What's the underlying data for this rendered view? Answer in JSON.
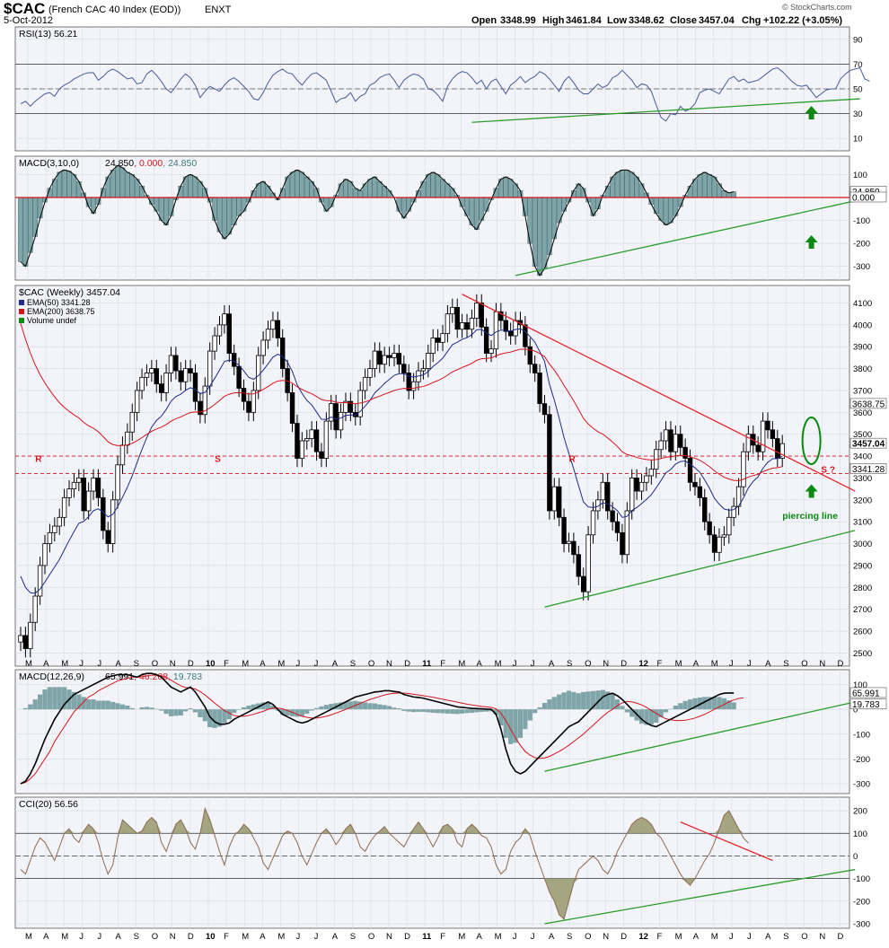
{
  "header": {
    "symbol": "$CAC",
    "name": "(French CAC 40 Index (EOD))",
    "exchange": "ENXT",
    "date": "5-Oct-2012",
    "open_label": "Open",
    "open": "3348.99",
    "high_label": "High",
    "high": "3461.84",
    "low_label": "Low",
    "low": "3348.62",
    "close_label": "Close",
    "close": "3457.04",
    "chg_label": "Chg",
    "chg": "+102.22 (+3.05%)",
    "watermark": "© StockCharts.com"
  },
  "colors": {
    "panel_bg": "#f3f4f9",
    "grid": "#d9dce6",
    "price_up": "#000000",
    "price_down": "#000000",
    "ema50": "#1f2a8a",
    "ema200": "#d3151b",
    "histogram": "#7fa5a8",
    "signal": "#d3151b",
    "macd_line": "#000000",
    "trendline_green": "#2a9d2a",
    "trendline_red": "#e0292e",
    "cci_fill": "#8b8b5a",
    "rsi_line": "#4a5a9a",
    "annotation_green": "#0b8a12"
  },
  "chart_data": [
    {
      "panel": "rsi",
      "type": "line",
      "title": "RSI(13) 56.21",
      "ylim": [
        0,
        100
      ],
      "yticks": [
        10,
        30,
        50,
        70,
        90
      ],
      "reference_lines": [
        30,
        50,
        70
      ],
      "current_value_label": "56.21",
      "grid": true,
      "values": [
        38,
        40,
        36,
        40,
        43,
        46,
        47,
        44,
        50,
        53,
        55,
        58,
        60,
        62,
        63,
        63,
        57,
        60,
        64,
        66,
        64,
        61,
        58,
        59,
        54,
        55,
        62,
        65,
        61,
        56,
        50,
        47,
        52,
        58,
        62,
        59,
        53,
        43,
        48,
        52,
        50,
        48,
        53,
        57,
        59,
        56,
        52,
        48,
        42,
        41,
        47,
        55,
        61,
        64,
        66,
        63,
        62,
        57,
        53,
        58,
        62,
        63,
        60,
        57,
        48,
        39,
        42,
        43,
        47,
        40,
        44,
        46,
        53,
        55,
        59,
        61,
        62,
        57,
        51,
        57,
        60,
        62,
        61,
        58,
        50,
        49,
        45,
        40,
        52,
        58,
        62,
        64,
        63,
        59,
        54,
        57,
        50,
        56,
        58,
        52,
        46,
        53,
        56,
        60,
        55,
        58,
        60,
        64,
        62,
        58,
        53,
        48,
        56,
        60,
        55,
        49,
        46,
        46,
        50,
        54,
        51,
        53,
        59,
        61,
        65,
        61,
        57,
        51,
        54,
        53,
        48,
        37,
        27,
        24,
        30,
        29,
        36,
        32,
        34,
        38,
        47,
        49,
        50,
        48,
        46,
        52,
        58,
        60,
        56,
        58,
        55,
        56,
        57,
        60,
        63,
        66,
        67,
        64,
        60,
        56,
        53,
        52,
        53,
        48,
        43,
        46,
        49,
        50,
        50,
        58,
        62,
        65,
        66,
        67,
        58,
        56.21
      ],
      "trendlines": [
        {
          "color": "green",
          "from": [
            93,
            23
          ],
          "to": [
            173,
            42
          ]
        }
      ]
    },
    {
      "panel": "macd_short",
      "type": "line",
      "title": "MACD(3,10,0)",
      "title_values": [
        "24.850",
        "0.000",
        "24.850"
      ],
      "ylim": [
        -360,
        180
      ],
      "yticks": [
        -300,
        -200,
        -100,
        0,
        100
      ],
      "current_value_labels": [
        "24.850",
        "0.000"
      ],
      "grid": true,
      "values": [
        -280,
        -300,
        -240,
        -170,
        -90,
        -20,
        40,
        80,
        110,
        120,
        115,
        100,
        70,
        20,
        -40,
        -70,
        -30,
        40,
        90,
        120,
        140,
        130,
        110,
        100,
        80,
        50,
        10,
        -30,
        -60,
        -100,
        -120,
        -80,
        -10,
        50,
        90,
        100,
        90,
        70,
        40,
        -20,
        -100,
        -150,
        -180,
        -160,
        -120,
        -80,
        -60,
        -20,
        30,
        60,
        70,
        50,
        20,
        -10,
        40,
        90,
        110,
        120,
        110,
        90,
        70,
        40,
        -20,
        -60,
        -40,
        10,
        60,
        80,
        70,
        40,
        30,
        60,
        80,
        90,
        70,
        50,
        30,
        0,
        -60,
        -90,
        -60,
        -20,
        30,
        70,
        100,
        110,
        100,
        80,
        60,
        40,
        10,
        -40,
        -80,
        -120,
        -140,
        -100,
        -60,
        -10,
        40,
        80,
        90,
        80,
        60,
        30,
        -80,
        -200,
        -300,
        -340,
        -310,
        -250,
        -180,
        -110,
        -60,
        -20,
        30,
        60,
        40,
        -20,
        -80,
        -50,
        10,
        50,
        90,
        110,
        120,
        120,
        110,
        90,
        60,
        20,
        -30,
        -70,
        -100,
        -120,
        -110,
        -80,
        -40,
        10,
        50,
        80,
        100,
        110,
        100,
        90,
        60,
        30,
        20,
        24.85
      ],
      "trendlines": [
        {
          "color": "green",
          "from": [
            102,
            -340
          ],
          "to": [
            173,
            -10
          ]
        }
      ]
    },
    {
      "panel": "price",
      "type": "candlestick",
      "title": "$CAC (Weekly) 3457.04",
      "series": [
        {
          "name": "EMA(50) 3341.28",
          "color": "#1f2a8a"
        },
        {
          "name": "EMA(200) 3638.75",
          "color": "#d3151b"
        },
        {
          "name": "Volume undef",
          "color": "#0b8a12"
        }
      ],
      "ylim": [
        2440,
        4180
      ],
      "yticks": [
        2500,
        2600,
        2700,
        2800,
        2900,
        3000,
        3100,
        3200,
        3300,
        3400,
        3500,
        3600,
        3700,
        3800,
        3900,
        4000,
        4100
      ],
      "current_value_labels": [
        "3638.75",
        "3457.04",
        "3341.28"
      ],
      "grid": true,
      "close": [
        2580,
        2520,
        2640,
        2760,
        2900,
        3000,
        3050,
        3080,
        3120,
        3210,
        3250,
        3280,
        3300,
        3150,
        3240,
        3300,
        3210,
        3060,
        3000,
        3200,
        3360,
        3450,
        3510,
        3600,
        3700,
        3760,
        3780,
        3800,
        3730,
        3690,
        3780,
        3860,
        3790,
        3740,
        3800,
        3780,
        3650,
        3590,
        3720,
        3880,
        3950,
        4000,
        4050,
        3870,
        3810,
        3710,
        3650,
        3600,
        3700,
        3860,
        3930,
        3980,
        4020,
        3940,
        3800,
        3690,
        3550,
        3390,
        3470,
        3480,
        3520,
        3420,
        3390,
        3560,
        3640,
        3520,
        3600,
        3650,
        3600,
        3580,
        3700,
        3760,
        3800,
        3880,
        3820,
        3860,
        3850,
        3870,
        3820,
        3780,
        3700,
        3740,
        3790,
        3800,
        3870,
        3940,
        3920,
        3960,
        4050,
        4080,
        3980,
        4010,
        3980,
        4030,
        4100,
        3990,
        3870,
        3890,
        4060,
        4020,
        3970,
        3950,
        4020,
        4000,
        3900,
        3820,
        3780,
        3640,
        3590,
        3150,
        3260,
        3120,
        3000,
        3010,
        2950,
        2850,
        2780,
        3040,
        3150,
        3200,
        3280,
        3150,
        3100,
        3050,
        2950,
        3150,
        3300,
        3240,
        3280,
        3310,
        3340,
        3430,
        3470,
        3520,
        3420,
        3500,
        3440,
        3390,
        3280,
        3260,
        3210,
        3100,
        3040,
        2960,
        3030,
        3040,
        3120,
        3170,
        3260,
        3420,
        3500,
        3450,
        3420,
        3560,
        3520,
        3480,
        3390,
        3457.04
      ],
      "annotations": [
        {
          "text": "R",
          "x": 3,
          "y": 3390,
          "color": "#d3151b"
        },
        {
          "text": "S",
          "x": 40,
          "y": 3390,
          "color": "#d3151b"
        },
        {
          "text": "R",
          "x": 113,
          "y": 3390,
          "color": "#d3151b"
        },
        {
          "text": "S ?",
          "x": 165,
          "y": 3340,
          "color": "#d3151b"
        },
        {
          "text": "piercing line",
          "x": 157,
          "y": 3130,
          "color": "#0b8a12"
        }
      ],
      "horizontal_lines": [
        3400,
        3320
      ],
      "trendlines": [
        {
          "color": "red",
          "from": [
            91,
            4140
          ],
          "to": [
            172,
            3240
          ]
        },
        {
          "color": "green",
          "from": [
            108,
            2710
          ],
          "to": [
            172,
            3060
          ]
        }
      ]
    },
    {
      "panel": "macd_long",
      "type": "line",
      "title": "MACD(12,26,9)",
      "title_values": [
        "65.991",
        "46.208",
        "19.783"
      ],
      "ylim": [
        -340,
        160
      ],
      "yticks": [
        -300,
        -200,
        -100,
        0,
        100
      ],
      "current_value_labels": [
        "65.991",
        "19.783"
      ],
      "grid": true,
      "macd": [
        -300,
        -290,
        -260,
        -220,
        -170,
        -120,
        -80,
        -40,
        -10,
        20,
        40,
        60,
        70,
        80,
        90,
        100,
        110,
        120,
        130,
        135,
        140,
        140,
        140,
        135,
        130,
        140,
        145,
        145,
        140,
        130,
        110,
        90,
        80,
        70,
        80,
        90,
        70,
        40,
        10,
        -30,
        -50,
        -60,
        -60,
        -55,
        -40,
        -30,
        -20,
        -10,
        0,
        10,
        20,
        30,
        20,
        0,
        -20,
        -30,
        -40,
        -50,
        -55,
        -50,
        -40,
        -30,
        -20,
        -10,
        0,
        10,
        20,
        30,
        40,
        50,
        55,
        60,
        65,
        70,
        72,
        75,
        75,
        72,
        70,
        60,
        55,
        50,
        48,
        45,
        40,
        35,
        30,
        25,
        20,
        15,
        10,
        8,
        6,
        4,
        3,
        2,
        1,
        0,
        -20,
        -80,
        -160,
        -220,
        -250,
        -260,
        -250,
        -230,
        -210,
        -190,
        -170,
        -150,
        -130,
        -110,
        -90,
        -70,
        -60,
        -50,
        -30,
        -10,
        10,
        30,
        50,
        60,
        65,
        55,
        40,
        20,
        0,
        -20,
        -40,
        -55,
        -65,
        -70,
        -60,
        -50,
        -40,
        -30,
        -20,
        -10,
        0,
        10,
        20,
        30,
        40,
        50,
        60,
        65,
        66,
        65.991
      ],
      "signal": [
        -300,
        -295,
        -280,
        -260,
        -230,
        -200,
        -170,
        -130,
        -100,
        -70,
        -40,
        -10,
        10,
        30,
        50,
        60,
        75,
        85,
        95,
        105,
        115,
        120,
        125,
        130,
        130,
        132,
        135,
        138,
        138,
        135,
        128,
        118,
        106,
        95,
        88,
        86,
        82,
        72,
        58,
        42,
        25,
        10,
        -5,
        -15,
        -25,
        -28,
        -28,
        -25,
        -20,
        -14,
        -8,
        0,
        5,
        5,
        2,
        -5,
        -12,
        -20,
        -28,
        -32,
        -35,
        -35,
        -32,
        -28,
        -22,
        -15,
        -8,
        0,
        8,
        16,
        24,
        32,
        40,
        46,
        52,
        58,
        62,
        65,
        66,
        66,
        64,
        61,
        58,
        55,
        52,
        49,
        45,
        41,
        37,
        33,
        29,
        25,
        21,
        18,
        15,
        12,
        10,
        8,
        2,
        -15,
        -45,
        -80,
        -115,
        -145,
        -170,
        -185,
        -195,
        -198,
        -196,
        -190,
        -180,
        -170,
        -158,
        -145,
        -130,
        -115,
        -100,
        -82,
        -64,
        -46,
        -28,
        -12,
        0,
        15,
        26,
        32,
        30,
        25,
        18,
        8,
        -4,
        -16,
        -28,
        -38,
        -42,
        -45,
        -45,
        -44,
        -40,
        -35,
        -28,
        -20,
        -10,
        0,
        10,
        20,
        30,
        38,
        44,
        46.208
      ],
      "trendlines": [
        {
          "color": "green",
          "from": [
            108,
            -250
          ],
          "to": [
            172,
            30
          ]
        }
      ]
    },
    {
      "panel": "cci",
      "type": "area",
      "title": "CCI(20) 56.56",
      "ylim": [
        -320,
        260
      ],
      "yticks": [
        -300,
        -200,
        -100,
        0,
        100,
        200
      ],
      "reference_lines": [
        -100,
        0,
        100
      ],
      "current_value_label": "56.56",
      "grid": true,
      "values": [
        -60,
        -80,
        -20,
        40,
        80,
        60,
        20,
        -20,
        40,
        100,
        120,
        80,
        60,
        110,
        140,
        120,
        60,
        -20,
        -80,
        -40,
        80,
        160,
        140,
        120,
        100,
        110,
        150,
        170,
        150,
        60,
        20,
        80,
        140,
        160,
        120,
        60,
        30,
        100,
        210,
        160,
        90,
        20,
        -40,
        40,
        90,
        110,
        140,
        120,
        80,
        40,
        -30,
        -60,
        -10,
        40,
        90,
        110,
        100,
        60,
        0,
        -40,
        10,
        60,
        100,
        120,
        90,
        50,
        80,
        120,
        140,
        100,
        40,
        20,
        60,
        90,
        110,
        130,
        100,
        80,
        60,
        40,
        80,
        120,
        150,
        120,
        80,
        40,
        80,
        130,
        140,
        120,
        60,
        40,
        120,
        140,
        120,
        90,
        80,
        40,
        -40,
        -80,
        -60,
        20,
        60,
        80,
        120,
        90,
        20,
        -40,
        -100,
        -160,
        -200,
        -260,
        -280,
        -200,
        -120,
        -60,
        -40,
        -20,
        0,
        -20,
        -60,
        -80,
        -40,
        20,
        60,
        100,
        140,
        160,
        170,
        160,
        140,
        100,
        80,
        40,
        0,
        -40,
        -80,
        -110,
        -130,
        -100,
        -60,
        -20,
        10,
        60,
        120,
        180,
        200,
        160,
        120,
        80,
        56.56
      ],
      "trendlines": [
        {
          "color": "green",
          "from": [
            108,
            -300
          ],
          "to": [
            172,
            -60
          ]
        },
        {
          "color": "red",
          "from": [
            136,
            150
          ],
          "to": [
            155,
            -20
          ]
        }
      ]
    }
  ],
  "x_axis": {
    "ticks": [
      "M",
      "A",
      "M",
      "J",
      "J",
      "A",
      "S",
      "O",
      "N",
      "D",
      "10",
      "F",
      "M",
      "A",
      "M",
      "J",
      "J",
      "A",
      "S",
      "O",
      "N",
      "D",
      "11",
      "F",
      "M",
      "A",
      "M",
      "J",
      "J",
      "A",
      "S",
      "O",
      "N",
      "D",
      "12",
      "F",
      "M",
      "A",
      "M",
      "J",
      "J",
      "A",
      "S",
      "O",
      "N",
      "D"
    ]
  }
}
